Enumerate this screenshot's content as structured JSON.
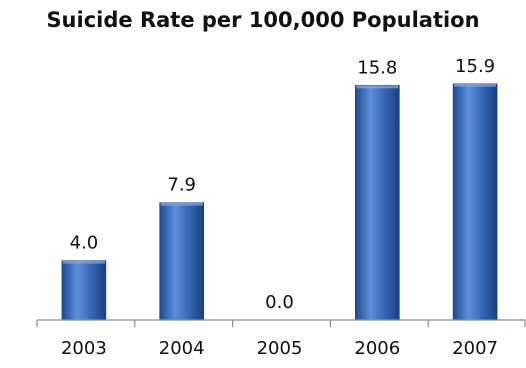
{
  "chart_data": {
    "type": "bar",
    "title": "Suicide Rate per 100,000 Population",
    "categories": [
      "2003",
      "2004",
      "2005",
      "2006",
      "2007"
    ],
    "values": [
      4.0,
      7.9,
      0.0,
      15.8,
      15.9
    ],
    "data_labels": [
      "4.0",
      "7.9",
      "0.0",
      "15.8",
      "15.9"
    ],
    "xlabel": "",
    "ylabel": "",
    "ylim": [
      0,
      17.5
    ],
    "grid": false,
    "legend": "none",
    "bar_color": "#3f72c2"
  }
}
